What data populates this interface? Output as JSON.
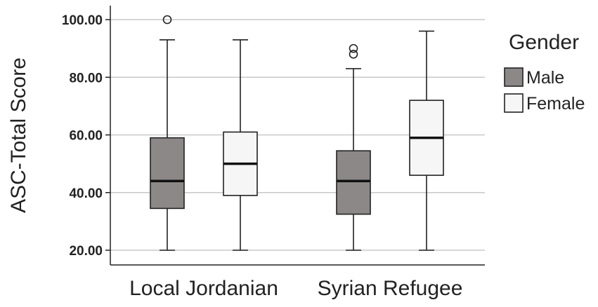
{
  "chart_data": {
    "type": "boxplot",
    "ylabel": "ASC-Total Score",
    "xlabel": "",
    "ylim": [
      16,
      104
    ],
    "yticks": [
      20,
      40,
      60,
      80,
      100
    ],
    "ytick_labels": [
      "20.00",
      "40.00",
      "60.00",
      "80.00",
      "100.00"
    ],
    "grid": true,
    "categories": [
      "Local Jordanian",
      "Syrian Refugee"
    ],
    "legend": {
      "title": "Gender",
      "placement": "right",
      "entries": [
        {
          "name": "Male",
          "color": "#8c8888"
        },
        {
          "name": "Female",
          "color": "#f6f6f6"
        }
      ]
    },
    "series": [
      {
        "name": "Male",
        "color": "#8c8888",
        "boxes": [
          {
            "min": 20,
            "q1": 34.5,
            "median": 44,
            "q3": 59,
            "max": 93,
            "outliers": [
              100
            ]
          },
          {
            "min": 20,
            "q1": 32.5,
            "median": 44,
            "q3": 54.5,
            "max": 83,
            "outliers": [
              88,
              90
            ]
          }
        ]
      },
      {
        "name": "Female",
        "color": "#f6f6f6",
        "boxes": [
          {
            "min": 20,
            "q1": 39,
            "median": 50,
            "q3": 61,
            "max": 93,
            "outliers": []
          },
          {
            "min": 20,
            "q1": 46,
            "median": 59,
            "q3": 72,
            "max": 96,
            "outliers": []
          }
        ]
      }
    ]
  }
}
